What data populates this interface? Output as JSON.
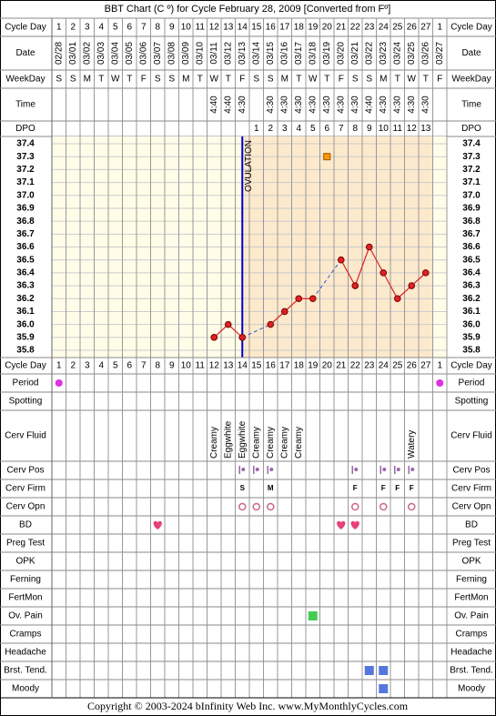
{
  "title": "BBT Chart (C º) for Cycle February 28, 2009  [Converted from Fº]",
  "header_rows": {
    "cycle_day": "Cycle Day",
    "date": "Date",
    "weekday": "WeekDay",
    "time": "Time",
    "dpo": "DPO"
  },
  "cycle_days": [
    "1",
    "2",
    "3",
    "4",
    "5",
    "6",
    "7",
    "8",
    "9",
    "10",
    "11",
    "12",
    "13",
    "14",
    "15",
    "16",
    "17",
    "18",
    "19",
    "20",
    "21",
    "22",
    "23",
    "24",
    "25",
    "26",
    "27",
    "1"
  ],
  "dates": [
    "02/28",
    "03/01",
    "03/02",
    "03/03",
    "03/04",
    "03/05",
    "03/06",
    "03/07",
    "03/08",
    "03/09",
    "03/10",
    "03/11",
    "03/12",
    "03/13",
    "03/14",
    "03/15",
    "03/16",
    "03/17",
    "03/18",
    "03/19",
    "03/20",
    "03/21",
    "03/22",
    "03/23",
    "03/24",
    "03/25",
    "03/26",
    "03/27"
  ],
  "weekdays": [
    "S",
    "S",
    "M",
    "T",
    "W",
    "T",
    "F",
    "S",
    "S",
    "M",
    "T",
    "W",
    "T",
    "F",
    "S",
    "S",
    "M",
    "T",
    "W",
    "T",
    "F",
    "S",
    "S",
    "M",
    "T",
    "W",
    "T",
    "F"
  ],
  "times": [
    null,
    null,
    null,
    null,
    null,
    null,
    null,
    null,
    null,
    null,
    null,
    "4:40",
    "4:40",
    "4:30",
    null,
    "4:30",
    "4:30",
    "4:30",
    "4:30",
    "4:30",
    "4:30",
    "4:30",
    "4:40",
    "4:30",
    "4:30",
    "4:30",
    "4:30",
    null
  ],
  "dpo": [
    null,
    null,
    null,
    null,
    null,
    null,
    null,
    null,
    null,
    null,
    null,
    null,
    null,
    null,
    1,
    2,
    3,
    4,
    5,
    6,
    7,
    8,
    9,
    10,
    11,
    12,
    13,
    null
  ],
  "chart_data": {
    "type": "line",
    "ylim": [
      35.8,
      37.4
    ],
    "yticks": [
      37.4,
      37.3,
      37.2,
      37.1,
      {
        "value": 37,
        "label": "37.0"
      },
      36.9,
      36.8,
      36.7,
      36.6,
      36.5,
      36.4,
      36.3,
      36.2,
      36.1,
      {
        "value": 36,
        "label": "36.0"
      },
      35.9,
      35.8
    ],
    "series": [
      {
        "color": "#dd2222",
        "values": [
          null,
          null,
          null,
          null,
          null,
          null,
          null,
          null,
          null,
          null,
          null,
          35.9,
          36.0,
          35.9,
          null,
          36.0,
          36.1,
          36.2,
          36.2,
          null,
          36.5,
          36.3,
          36.6,
          36.4,
          36.2,
          36.3,
          36.4,
          null
        ]
      },
      {
        "color": "#ff9900",
        "values": [
          null,
          null,
          null,
          null,
          null,
          null,
          null,
          null,
          null,
          null,
          null,
          null,
          null,
          null,
          null,
          null,
          null,
          null,
          null,
          37.3,
          null,
          null,
          null,
          null,
          null,
          null,
          null,
          null
        ]
      }
    ],
    "ovulation": {
      "label": "OVULATION",
      "cycle_day": 14
    }
  },
  "symptoms": [
    {
      "label": "Period",
      "style": "dot",
      "color": "#e030e0",
      "columns": [
        1,
        28
      ]
    },
    {
      "label": "Spotting",
      "style": "dot",
      "color": "#e030e0",
      "columns": []
    },
    {
      "label": "Cerv Fluid",
      "style": "text",
      "texts": [
        null,
        null,
        null,
        null,
        null,
        null,
        null,
        null,
        null,
        null,
        null,
        "Creamy",
        "Eggwhite",
        "Eggwhite",
        "Creamy",
        "Creamy",
        "Creamy",
        "Creamy",
        null,
        null,
        null,
        null,
        null,
        null,
        null,
        "Watery",
        null,
        null
      ]
    },
    {
      "label": "Cerv Pos",
      "style": "pos",
      "color": "#9966aa",
      "columns": [
        14,
        15,
        16,
        22,
        24,
        25,
        26
      ]
    },
    {
      "label": "Cerv Firm",
      "style": "letter",
      "color": "#cc3399",
      "texts": [
        null,
        null,
        null,
        null,
        null,
        null,
        null,
        null,
        null,
        null,
        null,
        null,
        null,
        "S",
        null,
        "M",
        null,
        null,
        null,
        null,
        null,
        "F",
        null,
        "F",
        "F",
        "F",
        null,
        null
      ]
    },
    {
      "label": "Cerv Opn",
      "style": "circle",
      "color": "#cc6688",
      "columns": [
        14,
        15,
        16,
        22,
        24,
        26
      ]
    },
    {
      "label": "BD",
      "style": "heart",
      "color": "#e8407a",
      "columns": [
        8,
        21,
        22
      ]
    },
    {
      "label": "Preg Test",
      "style": "square",
      "color": "#44cc44",
      "columns": []
    },
    {
      "label": "OPK",
      "style": "square",
      "color": "#44cc44",
      "columns": []
    },
    {
      "label": "Ferning",
      "style": "square",
      "color": "#44cc44",
      "columns": []
    },
    {
      "label": "FertMon",
      "style": "square",
      "color": "#44cc44",
      "columns": []
    },
    {
      "label": "Ov. Pain",
      "style": "square",
      "color": "#44cc55",
      "columns": [
        19
      ]
    },
    {
      "label": "Cramps",
      "style": "square",
      "color": "#5577dd",
      "columns": []
    },
    {
      "label": "Headache",
      "style": "square",
      "color": "#5577dd",
      "columns": []
    },
    {
      "label": "Brst. Tend.",
      "style": "square",
      "color": "#5577dd",
      "columns": [
        23,
        24
      ]
    },
    {
      "label": "Moody",
      "style": "square",
      "color": "#5577dd",
      "columns": [
        24
      ]
    }
  ],
  "footer": "Copyright © 2003-2024 bInfinity Web Inc.    www.MyMonthlyCycles.com"
}
